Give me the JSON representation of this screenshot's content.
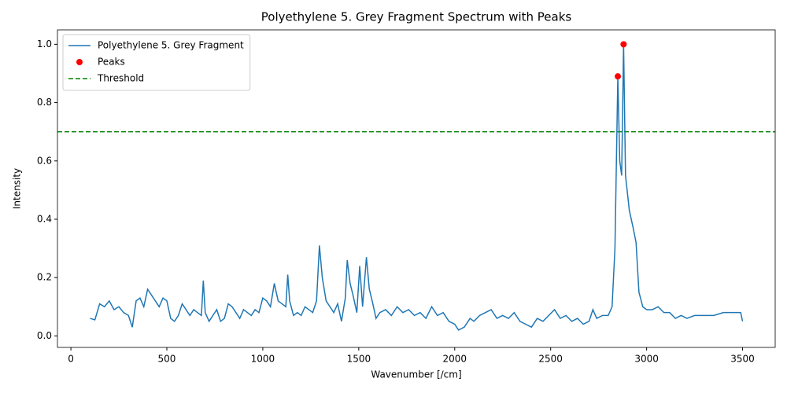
{
  "chart_data": {
    "type": "line",
    "title": "Polyethylene 5. Grey Fragment Spectrum with Peaks",
    "x_label": "Wavenumber [/cm]",
    "y_label": "Intensity",
    "xlim": [
      -70,
      3670
    ],
    "ylim": [
      -0.0395,
      1.0495
    ],
    "xticks": [
      0,
      500,
      1000,
      1500,
      2000,
      2500,
      3000,
      3500
    ],
    "yticks": [
      {
        "value": 0.0,
        "label": "0.0"
      },
      0.2,
      0.4,
      0.6,
      0.8,
      {
        "value": 1.0,
        "label": "1.0"
      }
    ],
    "grid": false,
    "legend": "upper left",
    "series": [
      {
        "name": "Polyethylene 5. Grey Fragment",
        "type": "line",
        "color": "#1f77b4",
        "x": [
          100,
          125,
          150,
          175,
          200,
          225,
          250,
          275,
          300,
          320,
          340,
          360,
          380,
          400,
          420,
          440,
          460,
          480,
          500,
          520,
          540,
          560,
          580,
          600,
          620,
          640,
          660,
          680,
          690,
          700,
          720,
          740,
          760,
          780,
          800,
          820,
          840,
          860,
          880,
          900,
          920,
          940,
          960,
          980,
          1000,
          1020,
          1040,
          1060,
          1080,
          1100,
          1120,
          1130,
          1140,
          1160,
          1180,
          1200,
          1220,
          1240,
          1260,
          1280,
          1295,
          1310,
          1330,
          1350,
          1370,
          1390,
          1410,
          1430,
          1440,
          1455,
          1470,
          1490,
          1505,
          1520,
          1540,
          1555,
          1570,
          1590,
          1610,
          1640,
          1670,
          1700,
          1730,
          1760,
          1790,
          1820,
          1850,
          1880,
          1910,
          1940,
          1970,
          2000,
          2020,
          2050,
          2080,
          2100,
          2130,
          2160,
          2190,
          2220,
          2250,
          2280,
          2310,
          2340,
          2370,
          2400,
          2430,
          2460,
          2490,
          2520,
          2550,
          2580,
          2610,
          2640,
          2670,
          2700,
          2720,
          2740,
          2770,
          2800,
          2820,
          2835,
          2850,
          2860,
          2870,
          2880,
          2890,
          2910,
          2930,
          2945,
          2960,
          2980,
          3000,
          3030,
          3060,
          3090,
          3120,
          3150,
          3180,
          3210,
          3250,
          3300,
          3350,
          3400,
          3450,
          3490,
          3500
        ],
        "values": [
          0.06,
          0.055,
          0.11,
          0.1,
          0.12,
          0.09,
          0.1,
          0.08,
          0.07,
          0.03,
          0.12,
          0.13,
          0.1,
          0.16,
          0.14,
          0.12,
          0.1,
          0.13,
          0.12,
          0.06,
          0.05,
          0.07,
          0.11,
          0.09,
          0.07,
          0.09,
          0.08,
          0.07,
          0.19,
          0.08,
          0.05,
          0.07,
          0.09,
          0.05,
          0.06,
          0.11,
          0.1,
          0.08,
          0.06,
          0.09,
          0.08,
          0.07,
          0.09,
          0.08,
          0.13,
          0.12,
          0.1,
          0.18,
          0.12,
          0.11,
          0.1,
          0.21,
          0.12,
          0.07,
          0.08,
          0.07,
          0.1,
          0.09,
          0.08,
          0.12,
          0.31,
          0.2,
          0.12,
          0.1,
          0.08,
          0.11,
          0.05,
          0.13,
          0.26,
          0.18,
          0.14,
          0.08,
          0.24,
          0.1,
          0.27,
          0.16,
          0.12,
          0.06,
          0.08,
          0.09,
          0.07,
          0.1,
          0.08,
          0.09,
          0.07,
          0.08,
          0.06,
          0.1,
          0.07,
          0.08,
          0.05,
          0.04,
          0.02,
          0.03,
          0.06,
          0.05,
          0.07,
          0.08,
          0.09,
          0.06,
          0.07,
          0.06,
          0.08,
          0.05,
          0.04,
          0.03,
          0.06,
          0.05,
          0.07,
          0.09,
          0.06,
          0.07,
          0.05,
          0.06,
          0.04,
          0.05,
          0.09,
          0.06,
          0.07,
          0.07,
          0.1,
          0.3,
          0.89,
          0.6,
          0.55,
          1.0,
          0.55,
          0.43,
          0.37,
          0.32,
          0.15,
          0.1,
          0.09,
          0.09,
          0.1,
          0.08,
          0.08,
          0.06,
          0.07,
          0.06,
          0.07,
          0.07,
          0.07,
          0.08,
          0.08,
          0.08,
          0.05
        ]
      },
      {
        "name": "Peaks",
        "type": "scatter",
        "color": "#ff0000",
        "x": [
          2850,
          2880
        ],
        "values": [
          0.89,
          1.0
        ]
      }
    ],
    "hlines": [
      {
        "name": "Threshold",
        "value": 0.7,
        "color": "#008000",
        "style": "dashed"
      }
    ]
  }
}
